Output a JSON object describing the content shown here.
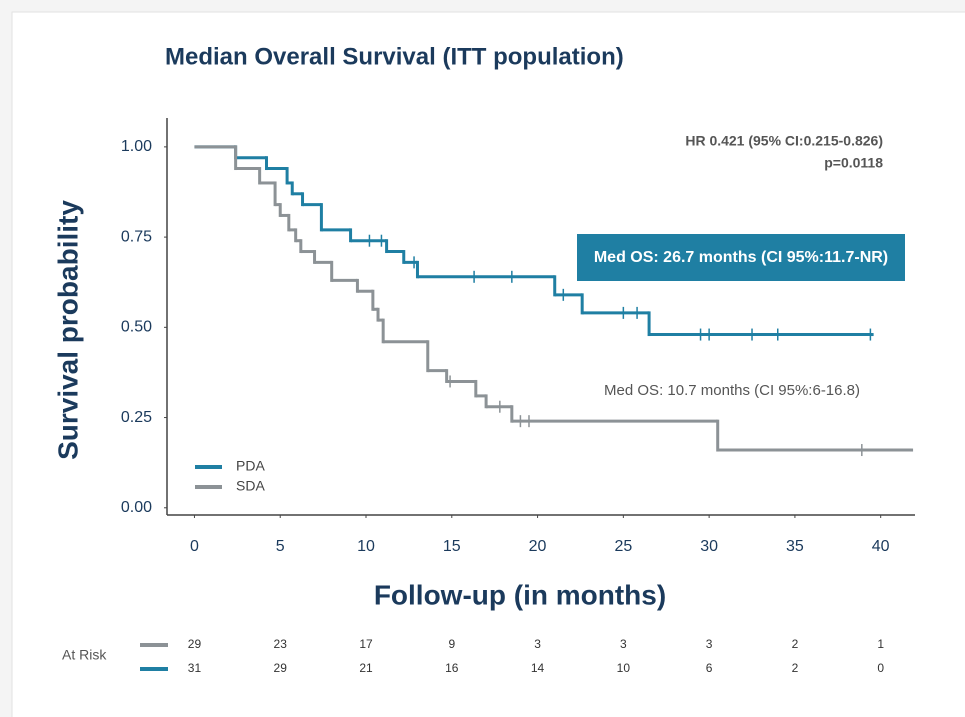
{
  "chart_data": {
    "type": "kaplan-meier",
    "title": "Median Overall Survival (ITT population)",
    "y_label": "Survival probability",
    "x_label": "Follow-up (in months)",
    "annotations": [
      "HR 0.421 (95% CI:0.215-0.826)",
      "p=0.0118",
      "Med OS: 26.7 months (CI 95%:11.7-NR)",
      "Med OS: 10.7 months (CI 95%:6-16.8)"
    ],
    "xlim": [
      -1.6,
      42
    ],
    "ylim": [
      -0.02,
      1.08
    ],
    "xticks": [
      0,
      5,
      10,
      15,
      20,
      25,
      30,
      35,
      40
    ],
    "yticks": [
      {
        "value": 0,
        "label": "0.00"
      },
      0.25,
      {
        "value": 0.5,
        "label": "0.50"
      },
      0.75,
      {
        "value": 1,
        "label": "1.00"
      }
    ],
    "legend": "bottom-left",
    "series": [
      {
        "name": "PDA",
        "color": "#1f7fa3",
        "x": [
          0,
          2.4,
          4.2,
          5.4,
          5.7,
          6.3,
          7.4,
          9.1,
          11.2,
          12.2,
          13.0,
          21.0,
          22.6,
          26.5,
          39.5
        ],
        "values": [
          1.0,
          0.97,
          0.94,
          0.9,
          0.87,
          0.84,
          0.77,
          0.74,
          0.71,
          0.68,
          0.64,
          0.59,
          0.54,
          0.48,
          0.48
        ],
        "censored": [
          10.2,
          10.9,
          12.8,
          16.3,
          18.5,
          21.5,
          25.0,
          25.8,
          29.5,
          30.0,
          32.5,
          34.0,
          39.4
        ]
      },
      {
        "name": "SDA",
        "color": "#8c9296",
        "x": [
          0,
          2.4,
          3.8,
          4.7,
          5.0,
          5.5,
          5.9,
          6.2,
          7.0,
          8.0,
          9.5,
          10.4,
          10.7,
          11.0,
          13.6,
          14.7,
          16.4,
          17.0,
          18.5,
          30.5,
          41.8
        ],
        "values": [
          1.0,
          0.94,
          0.9,
          0.84,
          0.81,
          0.77,
          0.74,
          0.71,
          0.68,
          0.63,
          0.6,
          0.55,
          0.52,
          0.46,
          0.38,
          0.35,
          0.31,
          0.28,
          0.24,
          0.16,
          0.16
        ],
        "censored": [
          14.9,
          17.8,
          19.0,
          19.5,
          38.9
        ]
      }
    ],
    "at_risk": {
      "label": "At Risk",
      "rows": [
        {
          "series": "SDA",
          "values": [
            29,
            23,
            17,
            9,
            3,
            3,
            3,
            2,
            1
          ]
        },
        {
          "series": "PDA",
          "values": [
            31,
            29,
            21,
            16,
            14,
            10,
            6,
            2,
            0
          ]
        }
      ]
    }
  }
}
